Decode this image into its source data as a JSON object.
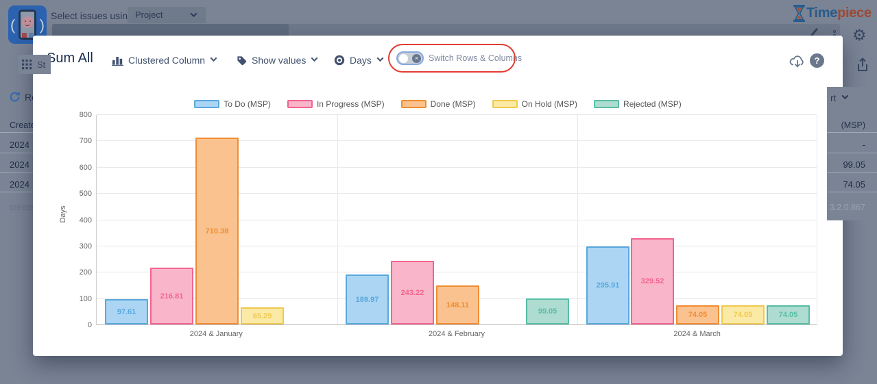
{
  "app": {
    "top_bar": {
      "select_issues_label": "Select issues using",
      "project_dropdown": "Project"
    },
    "logo": {
      "time": "Time",
      "piece": "piece"
    },
    "nav_chip_fragment": "St",
    "icons": {
      "gear": "⚙",
      "help": "?",
      "toggle_off": "×"
    },
    "left_panel": {
      "toolbar_fragment": "Ro",
      "column_header": "Created",
      "rows": [
        "2024",
        "2024",
        "2024"
      ],
      "filter_fragment": "created >"
    },
    "right_panel": {
      "toolbar_fragment": "rt",
      "column_header": "(MSP)",
      "rows": [
        "-",
        "99.05",
        "74.05"
      ],
      "version": "3.2.0.867"
    }
  },
  "modal": {
    "title": "Sum All",
    "chart_type": "Clustered Column",
    "show_values": "Show values",
    "unit": "Days",
    "switch_rows_columns": "Switch Rows & Columns"
  },
  "chart_data": {
    "type": "bar",
    "title": "",
    "categories": [
      "2024 & January",
      "2024 & February",
      "2024 & March"
    ],
    "series": [
      {
        "name": "To Do (MSP)",
        "values": [
          97.61,
          189.97,
          295.91
        ],
        "fill": "#ABD5F3",
        "border": "#58A8DE"
      },
      {
        "name": "In Progress (MSP)",
        "values": [
          216.81,
          243.22,
          329.52
        ],
        "fill": "#F9B6CA",
        "border": "#F1648F"
      },
      {
        "name": "Done (MSP)",
        "values": [
          710.38,
          148.11,
          74.05
        ],
        "fill": "#FAC28E",
        "border": "#F18D33"
      },
      {
        "name": "On Hold (MSP)",
        "values": [
          65.29,
          null,
          74.05
        ],
        "fill": "#FBE9A6",
        "border": "#EFC94F"
      },
      {
        "name": "Rejected (MSP)",
        "values": [
          null,
          99.05,
          74.05
        ],
        "fill": "#AEDCD1",
        "border": "#58BDA5"
      }
    ],
    "ylabel": "Days",
    "ylim": [
      0,
      800
    ],
    "ytick_step": 100,
    "grid": true,
    "legend_position": "top",
    "show_values": true
  }
}
